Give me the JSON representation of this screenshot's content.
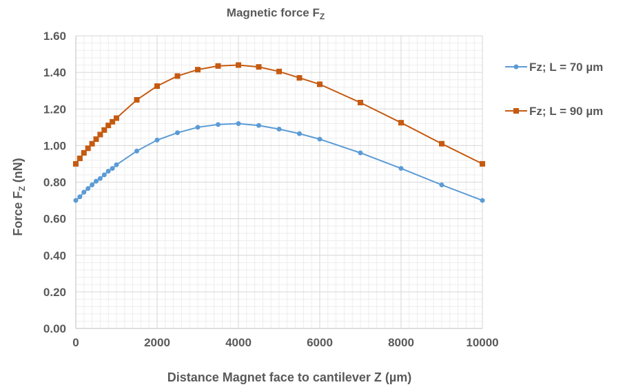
{
  "chart_data": {
    "type": "line",
    "title": "Magnetic force F",
    "title_subscript": "Z",
    "xlabel": "Distance Magnet face to cantilever Z (µm)",
    "ylabel": "Force F",
    "ylabel_subscript": "Z",
    "ylabel_unit": " (nN)",
    "xlim": [
      0,
      10000
    ],
    "ylim": [
      0,
      1.6
    ],
    "x_ticks": [
      "0",
      "2000",
      "4000",
      "6000",
      "8000",
      "10000"
    ],
    "y_ticks": [
      "0.00",
      "0.20",
      "0.40",
      "0.60",
      "0.80",
      "1.00",
      "1.20",
      "1.40",
      "1.60"
    ],
    "grid": true,
    "legend_position": "right",
    "series": [
      {
        "name": "Fz;  L = 70 µm",
        "color": "#5b9bd5",
        "marker": "circle",
        "x": [
          0,
          100,
          200,
          300,
          400,
          500,
          600,
          700,
          800,
          900,
          1000,
          1500,
          2000,
          2500,
          3000,
          3500,
          4000,
          4500,
          5000,
          5500,
          6000,
          7000,
          8000,
          9000,
          10000
        ],
        "y": [
          0.7,
          0.72,
          0.745,
          0.765,
          0.785,
          0.805,
          0.82,
          0.84,
          0.86,
          0.875,
          0.895,
          0.97,
          1.03,
          1.07,
          1.1,
          1.115,
          1.12,
          1.11,
          1.09,
          1.065,
          1.035,
          0.96,
          0.875,
          0.785,
          0.7
        ]
      },
      {
        "name": "Fz;  L = 90 µm",
        "color": "#c55a11",
        "marker": "square",
        "x": [
          0,
          100,
          200,
          300,
          400,
          500,
          600,
          700,
          800,
          900,
          1000,
          1500,
          2000,
          2500,
          3000,
          3500,
          4000,
          4500,
          5000,
          5500,
          6000,
          7000,
          8000,
          9000,
          10000
        ],
        "y": [
          0.9,
          0.93,
          0.96,
          0.985,
          1.01,
          1.035,
          1.06,
          1.085,
          1.11,
          1.13,
          1.15,
          1.25,
          1.325,
          1.38,
          1.415,
          1.435,
          1.44,
          1.43,
          1.405,
          1.37,
          1.335,
          1.235,
          1.125,
          1.01,
          0.9
        ]
      }
    ]
  }
}
